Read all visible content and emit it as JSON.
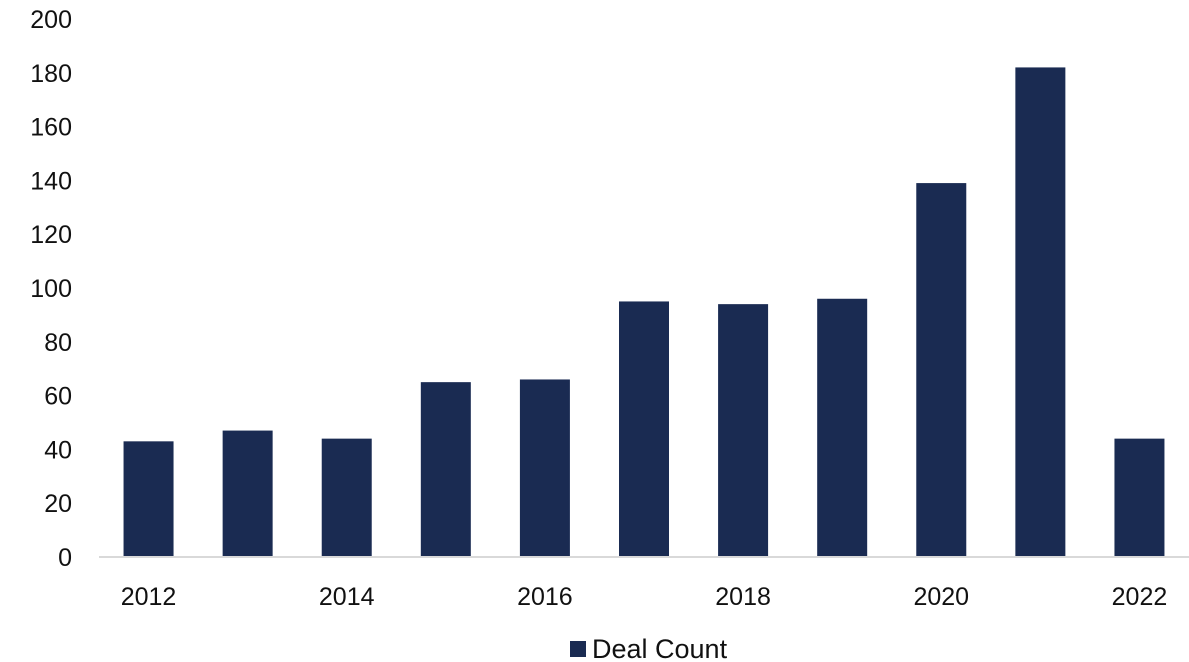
{
  "chart_data": {
    "type": "bar",
    "categories": [
      "2012",
      "2013",
      "2014",
      "2015",
      "2016",
      "2017",
      "2018",
      "2019",
      "2020",
      "2021",
      "2022"
    ],
    "x_tick_labels": [
      "2012",
      "",
      "2014",
      "",
      "2016",
      "",
      "2018",
      "",
      "2020",
      "",
      "2022"
    ],
    "series": [
      {
        "name": "Deal Count",
        "color": "#1a2b52",
        "values": [
          43,
          47,
          44,
          65,
          66,
          95,
          94,
          96,
          139,
          182,
          44
        ]
      }
    ],
    "ylim": [
      0,
      200
    ],
    "y_ticks": [
      0,
      20,
      40,
      60,
      80,
      100,
      120,
      140,
      160,
      180,
      200
    ],
    "grid": false,
    "legend": {
      "position": "bottom-center",
      "label": "Deal Count"
    },
    "axis_color": "#d9d9d9",
    "text_color": "#111111"
  }
}
